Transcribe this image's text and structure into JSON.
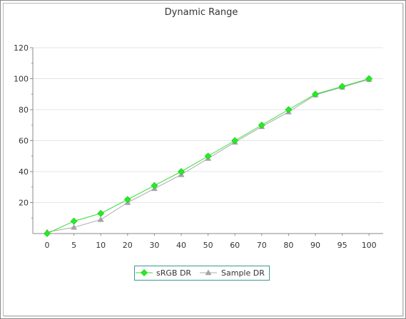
{
  "chart_data": {
    "type": "line",
    "title": "Dynamic Range",
    "xlabel": "",
    "ylabel": "",
    "categories": [
      "0",
      "5",
      "10",
      "20",
      "30",
      "40",
      "50",
      "60",
      "70",
      "80",
      "90",
      "95",
      "100"
    ],
    "ylim": [
      0,
      120
    ],
    "yticks": [
      20,
      40,
      60,
      80,
      100,
      120
    ],
    "grid": true,
    "legend_position": "bottom",
    "series": [
      {
        "name": "sRGB DR",
        "marker": "diamond",
        "color": "#33dd33",
        "marker_color": "#22ee22",
        "values": [
          0,
          8,
          13,
          22,
          31,
          40,
          50,
          60,
          70,
          80,
          90,
          95,
          100
        ]
      },
      {
        "name": "Sample DR",
        "marker": "triangle",
        "color": "#aaaaaa",
        "marker_color": "#a6a6a6",
        "values": [
          1,
          4,
          9,
          20,
          29,
          38,
          48.5,
          59,
          69,
          78.5,
          89.5,
          94.5,
          99.5
        ]
      }
    ]
  }
}
